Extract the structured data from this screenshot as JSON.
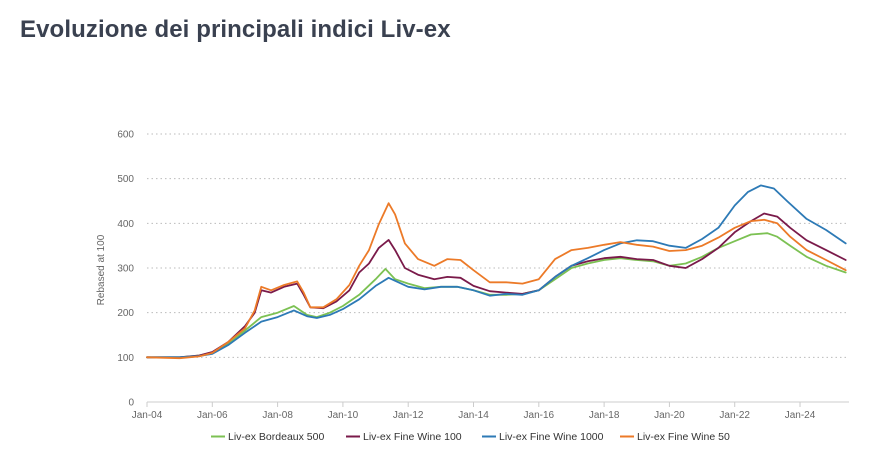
{
  "title": "Evoluzione dei principali indici Liv-ex",
  "chart_data": {
    "type": "line",
    "ylabel": "Rebased at 100",
    "xlabel": "",
    "ylim": [
      0,
      600
    ],
    "yticks": [
      0,
      100,
      200,
      300,
      400,
      500,
      600
    ],
    "xlim": [
      2004.0,
      2025.5
    ],
    "xticks": [
      {
        "label": "Jan-04",
        "value": 2004
      },
      {
        "label": "Jan-06",
        "value": 2006
      },
      {
        "label": "Jan-08",
        "value": 2008
      },
      {
        "label": "Jan-10",
        "value": 2010
      },
      {
        "label": "Jan-12",
        "value": 2012
      },
      {
        "label": "Jan-14",
        "value": 2014
      },
      {
        "label": "Jan-16",
        "value": 2016
      },
      {
        "label": "Jan-18",
        "value": 2018
      },
      {
        "label": "Jan-20",
        "value": 2020
      },
      {
        "label": "Jan-22",
        "value": 2022
      },
      {
        "label": "Jan-24",
        "value": 2024
      }
    ],
    "grid": true,
    "legend_position": "bottom",
    "series": [
      {
        "name": "Liv-ex Bordeaux 500",
        "color": "#7cc153",
        "points": [
          [
            2004,
            100
          ],
          [
            2005,
            100
          ],
          [
            2005.6,
            104
          ],
          [
            2006,
            110
          ],
          [
            2006.5,
            130
          ],
          [
            2007,
            160
          ],
          [
            2007.5,
            190
          ],
          [
            2008,
            200
          ],
          [
            2008.5,
            215
          ],
          [
            2008.9,
            195
          ],
          [
            2009.2,
            190
          ],
          [
            2009.6,
            200
          ],
          [
            2010,
            215
          ],
          [
            2010.5,
            240
          ],
          [
            2011,
            275
          ],
          [
            2011.3,
            298
          ],
          [
            2011.6,
            275
          ],
          [
            2012,
            265
          ],
          [
            2012.5,
            255
          ],
          [
            2013,
            258
          ],
          [
            2013.5,
            258
          ],
          [
            2014,
            250
          ],
          [
            2014.5,
            240
          ],
          [
            2015,
            240
          ],
          [
            2015.5,
            242
          ],
          [
            2016,
            250
          ],
          [
            2016.5,
            275
          ],
          [
            2017,
            300
          ],
          [
            2017.5,
            310
          ],
          [
            2018,
            318
          ],
          [
            2018.5,
            322
          ],
          [
            2019,
            318
          ],
          [
            2019.5,
            315
          ],
          [
            2020,
            305
          ],
          [
            2020.5,
            310
          ],
          [
            2021,
            325
          ],
          [
            2021.5,
            345
          ],
          [
            2022,
            360
          ],
          [
            2022.5,
            375
          ],
          [
            2023,
            378
          ],
          [
            2023.3,
            370
          ],
          [
            2023.7,
            350
          ],
          [
            2024.2,
            325
          ],
          [
            2024.8,
            305
          ],
          [
            2025.4,
            290
          ]
        ]
      },
      {
        "name": "Liv-ex Fine Wine 100",
        "color": "#7a1a4a",
        "points": [
          [
            2004,
            100
          ],
          [
            2005,
            100
          ],
          [
            2005.6,
            104
          ],
          [
            2006,
            112
          ],
          [
            2006.5,
            135
          ],
          [
            2007,
            170
          ],
          [
            2007.3,
            200
          ],
          [
            2007.5,
            250
          ],
          [
            2007.8,
            245
          ],
          [
            2008.2,
            258
          ],
          [
            2008.6,
            265
          ],
          [
            2008.8,
            240
          ],
          [
            2009,
            212
          ],
          [
            2009.4,
            210
          ],
          [
            2009.8,
            225
          ],
          [
            2010.2,
            250
          ],
          [
            2010.5,
            290
          ],
          [
            2010.8,
            310
          ],
          [
            2011.1,
            345
          ],
          [
            2011.4,
            363
          ],
          [
            2011.6,
            340
          ],
          [
            2011.9,
            300
          ],
          [
            2012.3,
            285
          ],
          [
            2012.8,
            275
          ],
          [
            2013.2,
            280
          ],
          [
            2013.6,
            278
          ],
          [
            2014,
            260
          ],
          [
            2014.5,
            248
          ],
          [
            2015,
            245
          ],
          [
            2015.5,
            242
          ],
          [
            2016,
            250
          ],
          [
            2016.5,
            280
          ],
          [
            2017,
            305
          ],
          [
            2017.5,
            315
          ],
          [
            2018,
            322
          ],
          [
            2018.5,
            325
          ],
          [
            2019,
            320
          ],
          [
            2019.5,
            318
          ],
          [
            2020,
            305
          ],
          [
            2020.5,
            300
          ],
          [
            2021,
            320
          ],
          [
            2021.5,
            345
          ],
          [
            2022,
            380
          ],
          [
            2022.5,
            405
          ],
          [
            2022.9,
            422
          ],
          [
            2023.3,
            415
          ],
          [
            2023.7,
            390
          ],
          [
            2024.2,
            362
          ],
          [
            2024.8,
            340
          ],
          [
            2025.4,
            318
          ]
        ]
      },
      {
        "name": "Liv-ex Fine Wine 1000",
        "color": "#2d7ab6",
        "points": [
          [
            2004,
            100
          ],
          [
            2005,
            100
          ],
          [
            2005.6,
            103
          ],
          [
            2006,
            108
          ],
          [
            2006.5,
            128
          ],
          [
            2007,
            155
          ],
          [
            2007.5,
            180
          ],
          [
            2008,
            190
          ],
          [
            2008.5,
            205
          ],
          [
            2008.9,
            192
          ],
          [
            2009.2,
            188
          ],
          [
            2009.6,
            195
          ],
          [
            2010,
            208
          ],
          [
            2010.5,
            230
          ],
          [
            2011,
            260
          ],
          [
            2011.4,
            278
          ],
          [
            2011.7,
            268
          ],
          [
            2012,
            258
          ],
          [
            2012.5,
            252
          ],
          [
            2013,
            258
          ],
          [
            2013.5,
            258
          ],
          [
            2014,
            250
          ],
          [
            2014.5,
            238
          ],
          [
            2015,
            242
          ],
          [
            2015.5,
            240
          ],
          [
            2016,
            250
          ],
          [
            2016.5,
            280
          ],
          [
            2017,
            305
          ],
          [
            2017.5,
            322
          ],
          [
            2018,
            340
          ],
          [
            2018.5,
            355
          ],
          [
            2019,
            362
          ],
          [
            2019.5,
            360
          ],
          [
            2020,
            350
          ],
          [
            2020.5,
            345
          ],
          [
            2021,
            365
          ],
          [
            2021.5,
            390
          ],
          [
            2022,
            440
          ],
          [
            2022.4,
            470
          ],
          [
            2022.8,
            485
          ],
          [
            2023.2,
            478
          ],
          [
            2023.6,
            450
          ],
          [
            2024.2,
            410
          ],
          [
            2024.8,
            385
          ],
          [
            2025.4,
            355
          ]
        ]
      },
      {
        "name": "Liv-ex Fine Wine 50",
        "color": "#ec7a28",
        "points": [
          [
            2004,
            100
          ],
          [
            2005,
            98
          ],
          [
            2005.6,
            102
          ],
          [
            2006,
            110
          ],
          [
            2006.5,
            135
          ],
          [
            2007,
            165
          ],
          [
            2007.3,
            205
          ],
          [
            2007.5,
            258
          ],
          [
            2007.8,
            250
          ],
          [
            2008.2,
            262
          ],
          [
            2008.6,
            270
          ],
          [
            2008.8,
            245
          ],
          [
            2009,
            212
          ],
          [
            2009.4,
            212
          ],
          [
            2009.8,
            230
          ],
          [
            2010.2,
            262
          ],
          [
            2010.5,
            305
          ],
          [
            2010.8,
            340
          ],
          [
            2011.1,
            398
          ],
          [
            2011.4,
            445
          ],
          [
            2011.6,
            420
          ],
          [
            2011.9,
            355
          ],
          [
            2012.3,
            320
          ],
          [
            2012.8,
            305
          ],
          [
            2013.2,
            320
          ],
          [
            2013.6,
            318
          ],
          [
            2014,
            295
          ],
          [
            2014.5,
            268
          ],
          [
            2015,
            268
          ],
          [
            2015.5,
            265
          ],
          [
            2016,
            275
          ],
          [
            2016.5,
            320
          ],
          [
            2017,
            340
          ],
          [
            2017.5,
            345
          ],
          [
            2018,
            352
          ],
          [
            2018.5,
            358
          ],
          [
            2019,
            352
          ],
          [
            2019.5,
            348
          ],
          [
            2020,
            338
          ],
          [
            2020.5,
            340
          ],
          [
            2021,
            350
          ],
          [
            2021.5,
            368
          ],
          [
            2022,
            390
          ],
          [
            2022.5,
            405
          ],
          [
            2022.9,
            408
          ],
          [
            2023.3,
            400
          ],
          [
            2023.7,
            370
          ],
          [
            2024.2,
            340
          ],
          [
            2024.8,
            318
          ],
          [
            2025.4,
            295
          ]
        ]
      }
    ]
  }
}
